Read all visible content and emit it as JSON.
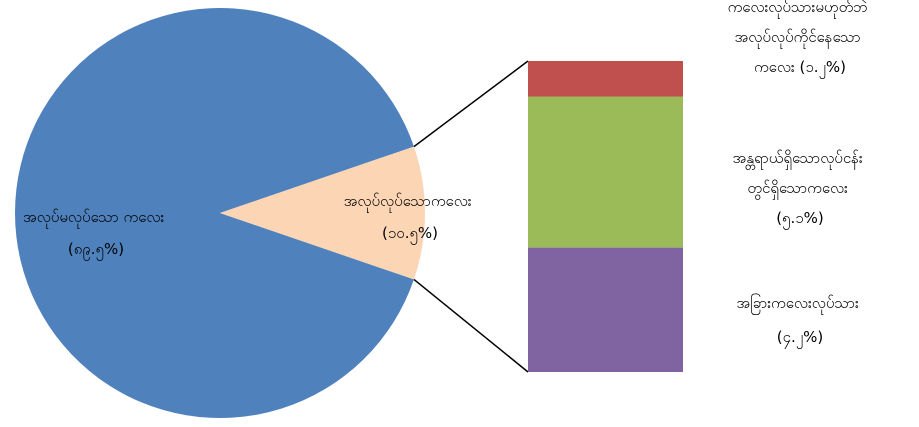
{
  "chart_data": [
    {
      "type": "pie",
      "slices": [
        {
          "label": "အလုပ်မလုပ်သော ကလေး",
          "value_label": "(၈၉.၅%)",
          "value": 89.5,
          "color": "#4F81BD"
        },
        {
          "label": "အလုပ်လုပ်သောကလေး",
          "value_label": "(၁၀.၅%)",
          "value": 10.5,
          "color": "#FCD5B5"
        }
      ]
    },
    {
      "type": "bar",
      "stacked": true,
      "breakdown_of": "အလုပ်လုပ်သောကလေး",
      "segments": [
        {
          "label_lines": [
            "အခြားကလေးလုပ်သား",
            "(၄.၂%)"
          ],
          "value": 4.2,
          "color": "#8064A2"
        },
        {
          "label_lines": [
            "အန္တရာယ်ရှိသောလုပ်ငန်း",
            "တွင်ရှိသောကလေး",
            "(၅.၁%)"
          ],
          "value": 5.1,
          "color": "#9BBB59"
        },
        {
          "label_lines": [
            "ကလေးလုပ်သားမဟုတ်ဘဲ",
            "အလုပ်လုပ်ကိုင်နေသော",
            "ကလေး (၁.၂%)"
          ],
          "value": 1.2,
          "color": "#C0504D"
        }
      ]
    }
  ]
}
